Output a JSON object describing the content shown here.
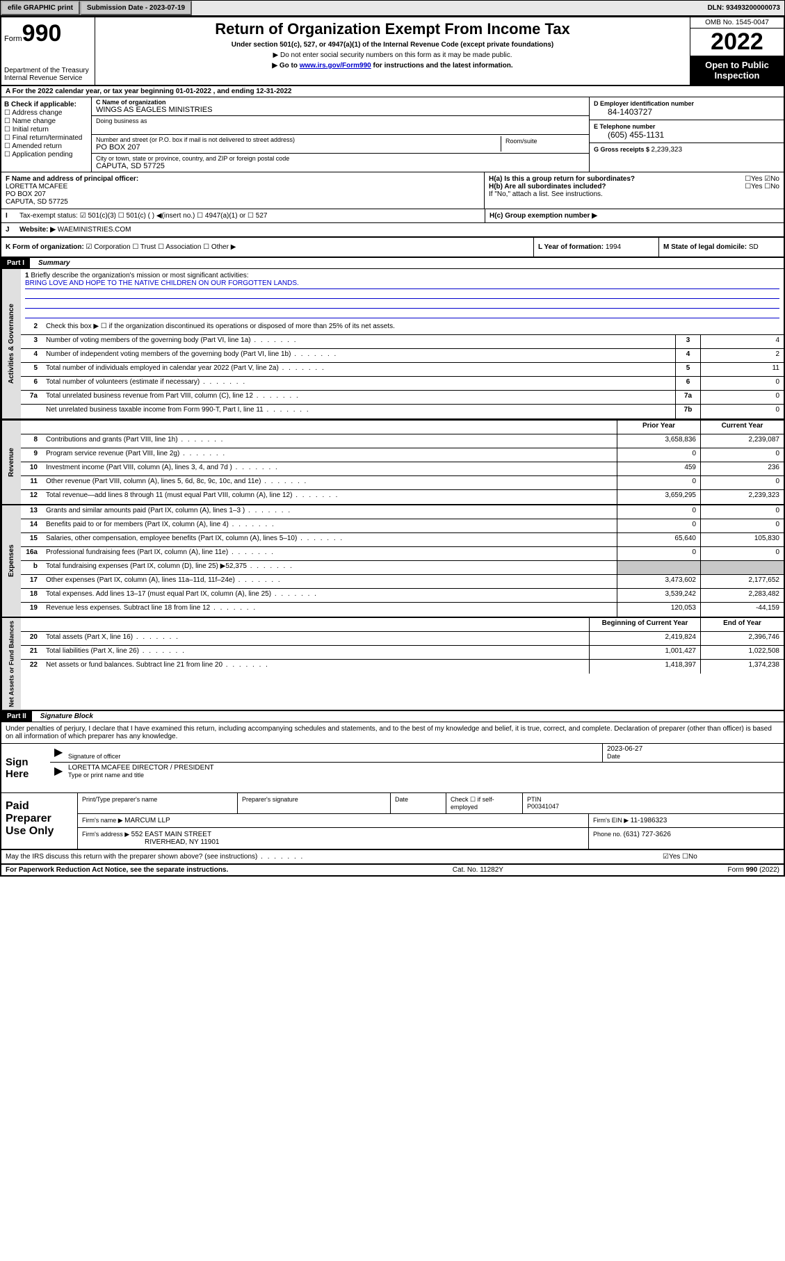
{
  "topbar": {
    "efile": "efile GRAPHIC print",
    "sub_lbl": "Submission Date - ",
    "sub_date": "2023-07-19",
    "dln_lbl": "DLN: ",
    "dln": "93493200000073"
  },
  "header": {
    "form": "Form",
    "num": "990",
    "dept": "Department of the Treasury Internal Revenue Service",
    "title": "Return of Organization Exempt From Income Tax",
    "sub1": "Under section 501(c), 527, or 4947(a)(1) of the Internal Revenue Code (except private foundations)",
    "sub2": "▶ Do not enter social security numbers on this form as it may be made public.",
    "sub3_pre": "▶ Go to ",
    "sub3_link": "www.irs.gov/Form990",
    "sub3_post": " for instructions and the latest information.",
    "omb": "OMB No. 1545-0047",
    "year": "2022",
    "open": "Open to Public Inspection"
  },
  "row_a": {
    "text": "A For the 2022 calendar year, or tax year beginning ",
    "begin": "01-01-2022",
    "mid": " , and ending ",
    "end": "12-31-2022"
  },
  "checkB": {
    "label": "B Check if applicable:",
    "items": [
      "☐ Address change",
      "☐ Name change",
      "☐ Initial return",
      "☐ Final return/terminated",
      "☐ Amended return",
      "☐ Application pending"
    ]
  },
  "c": {
    "lbl": "C Name of organization",
    "name": "WINGS AS EAGLES MINISTRIES",
    "dba_lbl": "Doing business as",
    "addr_lbl": "Number and street (or P.O. box if mail is not delivered to street address)",
    "room_lbl": "Room/suite",
    "addr": "PO BOX 207",
    "city_lbl": "City or town, state or province, country, and ZIP or foreign postal code",
    "city": "CAPUTA, SD  57725"
  },
  "d": {
    "lbl": "D Employer identification number",
    "val": "84-1403727"
  },
  "e": {
    "lbl": "E Telephone number",
    "val": "(605) 455-1131"
  },
  "g": {
    "lbl": "G Gross receipts $ ",
    "val": "2,239,323"
  },
  "f": {
    "lbl": "F Name and address of principal officer:",
    "name": "LORETTA MCAFEE",
    "addr": "PO BOX 207",
    "city": "CAPUTA, SD  57725"
  },
  "h": {
    "a": "H(a)  Is this a group return for subordinates?",
    "a_ans": "☐Yes ☑No",
    "b": "H(b)  Are all subordinates included?",
    "b_ans": "☐Yes ☐No",
    "b_note": "If \"No,\" attach a list. See instructions.",
    "c": "H(c)  Group exemption number ▶"
  },
  "i": {
    "lbl": "Tax-exempt status:",
    "opts": "☑ 501(c)(3)   ☐ 501(c) (  ) ◀(insert no.)    ☐ 4947(a)(1) or  ☐ 527"
  },
  "j": {
    "lbl": "Website: ▶ ",
    "val": "WAEMINISTRIES.COM"
  },
  "k": {
    "lbl": "K Form of organization: ",
    "opts": "☑ Corporation ☐ Trust ☐ Association ☐ Other ▶",
    "l": "L Year of formation: ",
    "l_val": "1994",
    "m": "M State of legal domicile: ",
    "m_val": "SD"
  },
  "part1": {
    "title": "Part I",
    "name": "Summary",
    "q1_lbl": "Briefly describe the organization's mission or most significant activities:",
    "q1_val": "BRING LOVE AND HOPE TO THE NATIVE CHILDREN ON OUR FORGOTTEN LANDS.",
    "q2": "Check this box ▶ ☐  if the organization discontinued its operations or disposed of more than 25% of its net assets.",
    "tabs": {
      "gov": "Activities & Governance",
      "rev": "Revenue",
      "exp": "Expenses",
      "net": "Net Assets or Fund Balances"
    },
    "hdr_prior": "Prior Year",
    "hdr_curr": "Current Year",
    "hdr_beg": "Beginning of Current Year",
    "hdr_end": "End of Year",
    "rows_gov": [
      {
        "n": "3",
        "t": "Number of voting members of the governing body (Part VI, line 1a)",
        "nb": "3",
        "v": "4"
      },
      {
        "n": "4",
        "t": "Number of independent voting members of the governing body (Part VI, line 1b)",
        "nb": "4",
        "v": "2"
      },
      {
        "n": "5",
        "t": "Total number of individuals employed in calendar year 2022 (Part V, line 2a)",
        "nb": "5",
        "v": "11"
      },
      {
        "n": "6",
        "t": "Total number of volunteers (estimate if necessary)",
        "nb": "6",
        "v": "0"
      },
      {
        "n": "7a",
        "t": "Total unrelated business revenue from Part VIII, column (C), line 12",
        "nb": "7a",
        "v": "0"
      },
      {
        "n": "",
        "t": "Net unrelated business taxable income from Form 990-T, Part I, line 11",
        "nb": "7b",
        "v": "0"
      }
    ],
    "rows_rev": [
      {
        "n": "8",
        "t": "Contributions and grants (Part VIII, line 1h)",
        "p": "3,658,836",
        "c": "2,239,087"
      },
      {
        "n": "9",
        "t": "Program service revenue (Part VIII, line 2g)",
        "p": "0",
        "c": "0"
      },
      {
        "n": "10",
        "t": "Investment income (Part VIII, column (A), lines 3, 4, and 7d )",
        "p": "459",
        "c": "236"
      },
      {
        "n": "11",
        "t": "Other revenue (Part VIII, column (A), lines 5, 6d, 8c, 9c, 10c, and 11e)",
        "p": "0",
        "c": "0"
      },
      {
        "n": "12",
        "t": "Total revenue—add lines 8 through 11 (must equal Part VIII, column (A), line 12)",
        "p": "3,659,295",
        "c": "2,239,323"
      }
    ],
    "rows_exp": [
      {
        "n": "13",
        "t": "Grants and similar amounts paid (Part IX, column (A), lines 1–3 )",
        "p": "0",
        "c": "0"
      },
      {
        "n": "14",
        "t": "Benefits paid to or for members (Part IX, column (A), line 4)",
        "p": "0",
        "c": "0"
      },
      {
        "n": "15",
        "t": "Salaries, other compensation, employee benefits (Part IX, column (A), lines 5–10)",
        "p": "65,640",
        "c": "105,830"
      },
      {
        "n": "16a",
        "t": "Professional fundraising fees (Part IX, column (A), line 11e)",
        "p": "0",
        "c": "0"
      },
      {
        "n": "b",
        "t": "Total fundraising expenses (Part IX, column (D), line 25) ▶52,375",
        "p": "",
        "c": "",
        "grey": true
      },
      {
        "n": "17",
        "t": "Other expenses (Part IX, column (A), lines 11a–11d, 11f–24e)",
        "p": "3,473,602",
        "c": "2,177,652"
      },
      {
        "n": "18",
        "t": "Total expenses. Add lines 13–17 (must equal Part IX, column (A), line 25)",
        "p": "3,539,242",
        "c": "2,283,482"
      },
      {
        "n": "19",
        "t": "Revenue less expenses. Subtract line 18 from line 12",
        "p": "120,053",
        "c": "-44,159"
      }
    ],
    "rows_net": [
      {
        "n": "20",
        "t": "Total assets (Part X, line 16)",
        "p": "2,419,824",
        "c": "2,396,746"
      },
      {
        "n": "21",
        "t": "Total liabilities (Part X, line 26)",
        "p": "1,001,427",
        "c": "1,022,508"
      },
      {
        "n": "22",
        "t": "Net assets or fund balances. Subtract line 21 from line 20",
        "p": "1,418,397",
        "c": "1,374,238"
      }
    ]
  },
  "part2": {
    "title": "Part II",
    "name": "Signature Block",
    "decl": "Under penalties of perjury, I declare that I have examined this return, including accompanying schedules and statements, and to the best of my knowledge and belief, it is true, correct, and complete. Declaration of preparer (other than officer) is based on all information of which preparer has any knowledge.",
    "sign_here": "Sign Here",
    "sig_officer": "Signature of officer",
    "sig_date_lbl": "Date",
    "sig_date": "2023-06-27",
    "sig_name": "LORETTA MCAFEE  DIRECTOR / PRESIDENT",
    "sig_name_lbl": "Type or print name and title"
  },
  "paid": {
    "title": "Paid Preparer Use Only",
    "h1": "Print/Type preparer's name",
    "h2": "Preparer's signature",
    "h3": "Date",
    "h4_a": "Check ☐ if self-employed",
    "h4_b": "PTIN",
    "ptin": "P00341047",
    "firm_lbl": "Firm's name    ▶ ",
    "firm": "MARCUM LLP",
    "ein_lbl": "Firm's EIN ▶ ",
    "ein": "11-1986323",
    "addr_lbl": "Firm's address ▶ ",
    "addr1": "552 EAST MAIN STREET",
    "addr2": "RIVERHEAD, NY  11901",
    "phone_lbl": "Phone no. ",
    "phone": "(631) 727-3626"
  },
  "discuss": {
    "text": "May the IRS discuss this return with the preparer shown above? (see instructions)",
    "ans": "☑Yes ☐No"
  },
  "footer": {
    "left": "For Paperwork Reduction Act Notice, see the separate instructions.",
    "mid": "Cat. No. 11282Y",
    "right_a": "Form ",
    "right_b": "990",
    "right_c": " (2022)"
  }
}
